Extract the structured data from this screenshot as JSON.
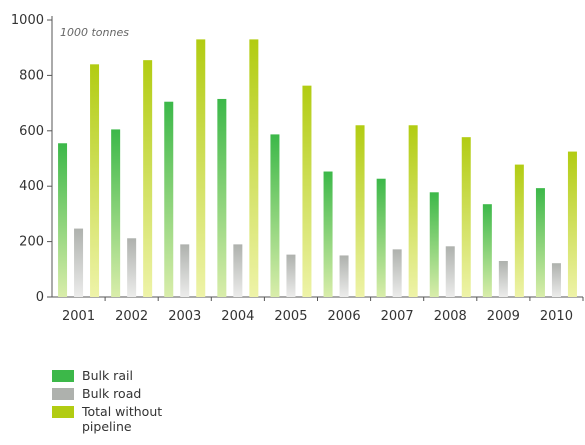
{
  "chart_data": {
    "type": "bar",
    "unit_label": "1000 tonnes",
    "categories": [
      "2001",
      "2002",
      "2003",
      "2004",
      "2005",
      "2006",
      "2007",
      "2008",
      "2009",
      "2010"
    ],
    "ylim": [
      0,
      1000
    ],
    "yticks": [
      0,
      200,
      400,
      600,
      800,
      1000
    ],
    "series": [
      {
        "name": "Bulk rail",
        "color": "#3cb849",
        "values": [
          555,
          605,
          705,
          715,
          587,
          453,
          427,
          378,
          335,
          393
        ]
      },
      {
        "name": "Bulk road",
        "color": "#aeb1ad",
        "values": [
          247,
          212,
          190,
          190,
          153,
          150,
          172,
          183,
          130,
          122
        ]
      },
      {
        "name": "Total without pipeline",
        "color": "#b2cc12",
        "values": [
          840,
          855,
          930,
          930,
          763,
          620,
          620,
          577,
          478,
          525
        ]
      }
    ],
    "legend_position": "bottom-left",
    "grid": false
  }
}
